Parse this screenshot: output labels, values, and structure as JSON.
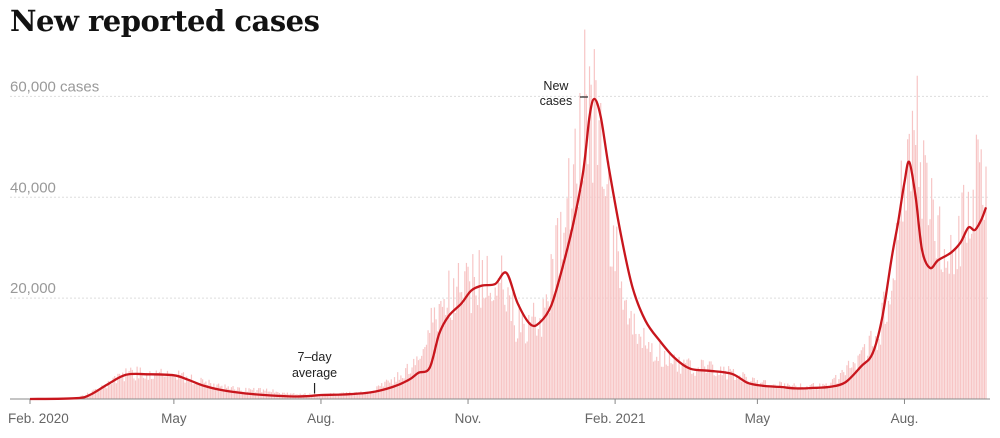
{
  "title": "New reported cases",
  "chart_data": {
    "type": "bar",
    "title": "New reported cases",
    "series": [
      {
        "kind": "daily-bars",
        "color": "#f7c5c5",
        "x": [
          "2020-02-01",
          "2020-03-01",
          "2020-03-15",
          "2020-04-01",
          "2020-04-10",
          "2020-04-20",
          "2020-05-01",
          "2020-05-15",
          "2020-06-01",
          "2020-06-15",
          "2020-07-01",
          "2020-07-15",
          "2020-08-01",
          "2020-08-15",
          "2020-09-01",
          "2020-09-15",
          "2020-10-01",
          "2020-10-10",
          "2020-10-20",
          "2020-11-01",
          "2020-11-10",
          "2020-11-20",
          "2020-12-01",
          "2020-12-10",
          "2020-12-20",
          "2021-01-01",
          "2021-01-08",
          "2021-01-15",
          "2021-01-25",
          "2021-02-05",
          "2021-02-15",
          "2021-03-01",
          "2021-03-15",
          "2021-04-01",
          "2021-04-15",
          "2021-05-01",
          "2021-05-15",
          "2021-06-01",
          "2021-06-15",
          "2021-07-01",
          "2021-07-15",
          "2021-07-25",
          "2021-08-01",
          "2021-08-10",
          "2021-08-20",
          "2021-09-01",
          "2021-09-10"
        ],
        "values": [
          0,
          200,
          1800,
          4800,
          5200,
          5000,
          5100,
          3500,
          2500,
          1900,
          1600,
          1000,
          800,
          1100,
          1300,
          3800,
          7000,
          16000,
          20000,
          23000,
          23500,
          24000,
          15500,
          15000,
          18000,
          36000,
          50000,
          64000,
          45000,
          20000,
          12000,
          9000,
          6500,
          6000,
          5200,
          3200,
          2800,
          2400,
          2800,
          7500,
          12000,
          25000,
          44000,
          53000,
          31000,
          27000,
          41000
        ]
      },
      {
        "name": "7-day average",
        "kind": "line",
        "color": "#c8161d",
        "x": [
          "2020-02-01",
          "2020-03-01",
          "2020-03-10",
          "2020-03-20",
          "2020-04-01",
          "2020-04-15",
          "2020-05-01",
          "2020-05-10",
          "2020-05-20",
          "2020-06-01",
          "2020-06-15",
          "2020-07-01",
          "2020-07-15",
          "2020-07-25",
          "2020-08-01",
          "2020-08-15",
          "2020-09-01",
          "2020-09-15",
          "2020-09-25",
          "2020-10-01",
          "2020-10-08",
          "2020-10-14",
          "2020-10-20",
          "2020-10-28",
          "2020-11-03",
          "2020-11-10",
          "2020-11-18",
          "2020-11-25",
          "2020-12-02",
          "2020-12-10",
          "2020-12-16",
          "2020-12-23",
          "2020-12-30",
          "2021-01-06",
          "2021-01-12",
          "2021-01-16",
          "2021-01-19",
          "2021-01-23",
          "2021-01-28",
          "2021-02-05",
          "2021-02-12",
          "2021-02-20",
          "2021-03-01",
          "2021-03-10",
          "2021-03-20",
          "2021-04-01",
          "2021-04-15",
          "2021-04-25",
          "2021-05-05",
          "2021-05-15",
          "2021-05-25",
          "2021-06-05",
          "2021-06-15",
          "2021-06-25",
          "2021-07-05",
          "2021-07-12",
          "2021-07-18",
          "2021-07-24",
          "2021-07-28",
          "2021-08-01",
          "2021-08-04",
          "2021-08-08",
          "2021-08-12",
          "2021-08-17",
          "2021-08-22",
          "2021-08-30",
          "2021-09-05",
          "2021-09-10",
          "2021-09-14",
          "2021-09-18",
          "2021-09-21"
        ],
        "values": [
          0,
          150,
          900,
          2800,
          4800,
          4900,
          4700,
          3800,
          2600,
          1700,
          1100,
          700,
          500,
          600,
          800,
          900,
          1300,
          2400,
          3800,
          5200,
          6200,
          13000,
          16500,
          19000,
          21500,
          22500,
          22800,
          25000,
          19000,
          14800,
          15200,
          18500,
          26000,
          35000,
          45000,
          56000,
          59500,
          56000,
          46000,
          32000,
          22000,
          15500,
          11500,
          8200,
          6000,
          5600,
          5000,
          3200,
          2600,
          2400,
          2100,
          2200,
          2400,
          3300,
          6500,
          9000,
          16000,
          28000,
          35000,
          43000,
          47000,
          40000,
          29500,
          26000,
          27500,
          29000,
          31000,
          34000,
          33500,
          35500,
          38000
        ]
      }
    ],
    "ylabel": "",
    "xlabel": "",
    "ylim": [
      0,
      70000
    ],
    "y_ticks": [
      {
        "value": 60000,
        "label": "60,000 cases"
      },
      {
        "value": 40000,
        "label": "40,000"
      },
      {
        "value": 20000,
        "label": "20,000"
      }
    ],
    "x_ticks": [
      {
        "date": "2020-02-01",
        "label": "Feb. 2020"
      },
      {
        "date": "2020-05-01",
        "label": "May"
      },
      {
        "date": "2020-08-01",
        "label": "Aug."
      },
      {
        "date": "2020-11-01",
        "label": "Nov."
      },
      {
        "date": "2021-02-01",
        "label": "Feb. 2021"
      },
      {
        "date": "2021-05-01",
        "label": "May"
      },
      {
        "date": "2021-08-01",
        "label": "Aug."
      }
    ],
    "grid": true,
    "annotations": [
      {
        "target": "7-day average",
        "date": "2020-07-28",
        "lines": [
          "7–day",
          "average"
        ]
      },
      {
        "target": "daily-bars",
        "date": "2021-01-15",
        "lines": [
          "New",
          "cases"
        ]
      }
    ]
  }
}
